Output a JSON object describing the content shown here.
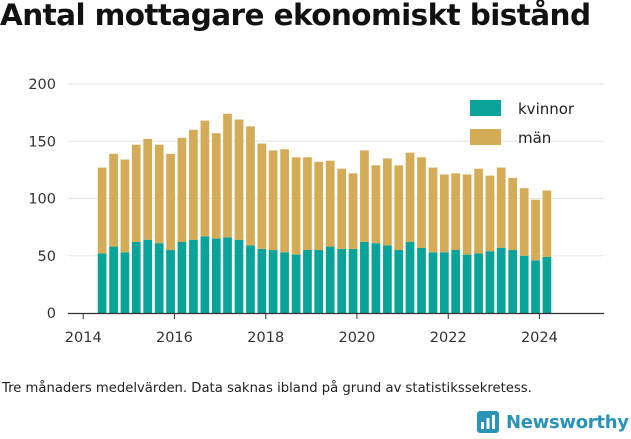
{
  "title": "Antal mottagare ekonomiskt bistånd",
  "footnote": "Tre månaders medelvärden. Data saknas ibland på grund av statistikssekretess.",
  "brand": {
    "name": "Newsworthy",
    "icon": "bar-chart-logo-icon",
    "color": "#2a93b8"
  },
  "colors": {
    "kvinnor": "#0aa39a",
    "man": "#d4ac58",
    "axis": "#333333",
    "grid": "#e6e6e6"
  },
  "chart_data": {
    "type": "bar",
    "stacked": true,
    "title": "Antal mottagare ekonomiskt bistånd",
    "xlabel": "",
    "ylabel": "",
    "x": [
      "2014-06",
      "2014-09",
      "2014-12",
      "2015-03",
      "2015-06",
      "2015-09",
      "2015-12",
      "2016-03",
      "2016-06",
      "2016-09",
      "2016-12",
      "2017-03",
      "2017-06",
      "2017-09",
      "2017-12",
      "2018-03",
      "2018-06",
      "2018-09",
      "2018-12",
      "2019-03",
      "2019-06",
      "2019-09",
      "2019-12",
      "2020-03",
      "2020-06",
      "2020-09",
      "2020-12",
      "2021-03",
      "2021-06",
      "2021-09",
      "2021-12",
      "2022-03",
      "2022-06",
      "2022-09",
      "2022-12",
      "2023-03",
      "2023-06",
      "2023-09",
      "2023-12",
      "2024-03"
    ],
    "series": [
      {
        "name": "kvinnor",
        "color": "#0aa39a",
        "values": [
          52,
          58,
          53,
          62,
          64,
          61,
          55,
          62,
          64,
          67,
          65,
          66,
          64,
          59,
          56,
          55,
          53,
          51,
          55,
          55,
          58,
          56,
          56,
          62,
          61,
          59,
          55,
          62,
          57,
          53,
          53,
          55,
          51,
          52,
          54,
          57,
          55,
          50,
          46,
          49
        ]
      },
      {
        "name": "män",
        "color": "#d4ac58",
        "values": [
          75,
          81,
          81,
          85,
          88,
          86,
          84,
          91,
          96,
          101,
          92,
          108,
          105,
          104,
          92,
          87,
          90,
          85,
          81,
          77,
          75,
          70,
          66,
          80,
          68,
          76,
          74,
          78,
          79,
          74,
          68,
          67,
          70,
          74,
          66,
          70,
          63,
          59,
          53,
          58
        ]
      }
    ],
    "xlim": [
      "2013-09-01",
      "2025-06-01"
    ],
    "ylim": [
      0,
      200
    ],
    "xticks": [
      "2014",
      "2016",
      "2018",
      "2020",
      "2022",
      "2024"
    ],
    "yticks": [
      "0",
      "50",
      "100",
      "150",
      "200"
    ],
    "grid": true,
    "legend_position": "top-right"
  }
}
